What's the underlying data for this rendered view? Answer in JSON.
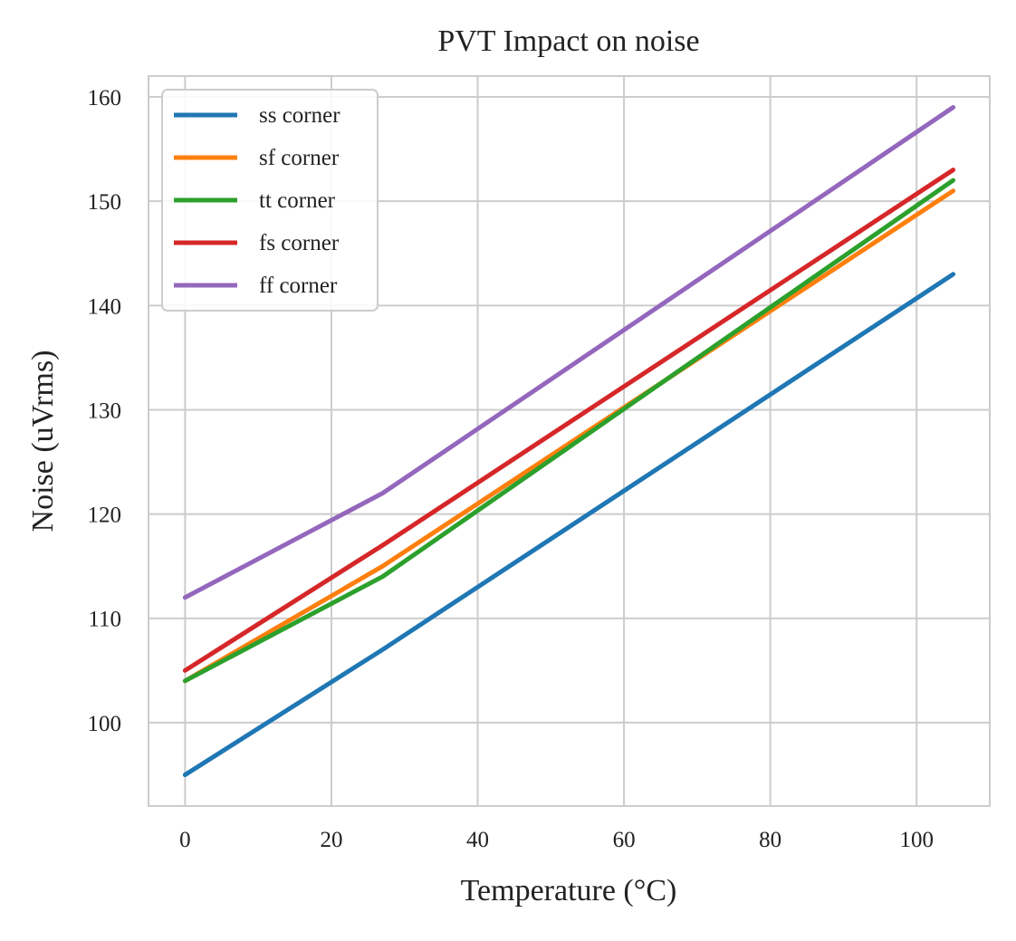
{
  "chart_data": {
    "type": "line",
    "title": "PVT Impact on noise",
    "xlabel": "Temperature (°C)",
    "ylabel": "Noise (uVrms)",
    "x": [
      0,
      27,
      105
    ],
    "xlim": [
      -5,
      110
    ],
    "ylim": [
      92,
      162
    ],
    "xticks": [
      0,
      20,
      40,
      60,
      80,
      100
    ],
    "yticks": [
      100,
      110,
      120,
      130,
      140,
      150,
      160
    ],
    "grid": true,
    "legend_position": "top-left",
    "series": [
      {
        "name": "ss corner",
        "color": "#1f77b4",
        "values": [
          95,
          107,
          143
        ]
      },
      {
        "name": "sf corner",
        "color": "#ff7f0e",
        "values": [
          104,
          115,
          151
        ]
      },
      {
        "name": "tt corner",
        "color": "#2ca02c",
        "values": [
          104,
          114,
          152
        ]
      },
      {
        "name": "fs corner",
        "color": "#d62728",
        "values": [
          105,
          117,
          153
        ]
      },
      {
        "name": "ff corner",
        "color": "#9467bd",
        "values": [
          112,
          122,
          159
        ]
      }
    ]
  }
}
